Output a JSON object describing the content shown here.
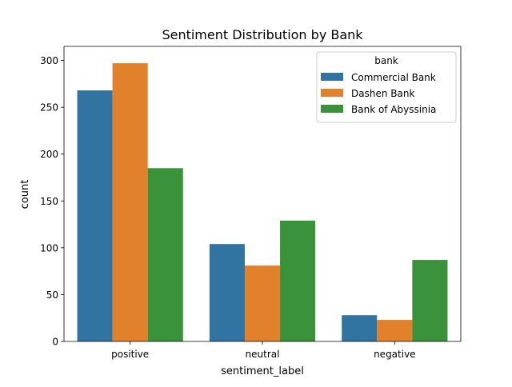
{
  "chart_data": {
    "type": "bar",
    "title": "Sentiment Distribution by Bank",
    "xlabel": "sentiment_label",
    "ylabel": "count",
    "categories": [
      "positive",
      "neutral",
      "negative"
    ],
    "ylim": [
      0,
      315
    ],
    "yticks": [
      0,
      50,
      100,
      150,
      200,
      250,
      300
    ],
    "grid": false,
    "legend": {
      "title": "bank",
      "placement": "top-right"
    },
    "series": [
      {
        "name": "Commercial Bank",
        "color": "#3274a1",
        "values": [
          268,
          104,
          28
        ]
      },
      {
        "name": "Dashen Bank",
        "color": "#e1812c",
        "values": [
          297,
          81,
          23
        ]
      },
      {
        "name": "Bank of Abyssinia",
        "color": "#3a923a",
        "values": [
          185,
          129,
          87
        ]
      }
    ]
  }
}
